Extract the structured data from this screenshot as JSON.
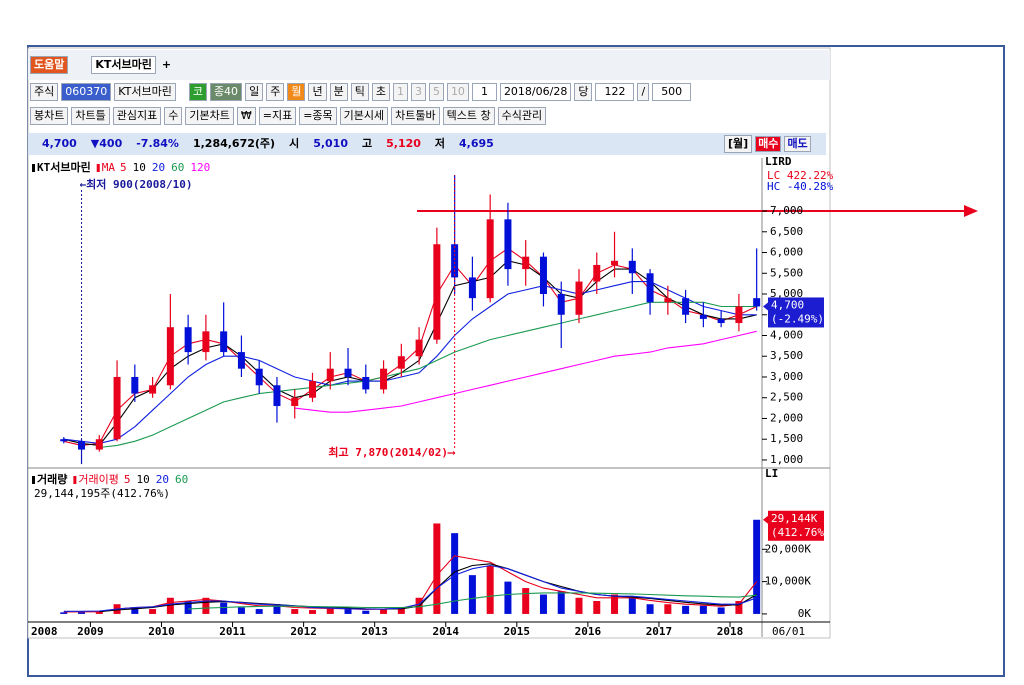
{
  "tabs": [
    "도움말",
    "KT서브마린",
    "+"
  ],
  "toolbar": [
    "주식",
    "060370",
    "KT서브마린",
    "코",
    "종40",
    "일",
    "주",
    "월",
    "년",
    "분",
    "틱",
    "초",
    "1",
    "3",
    "5",
    "10",
    "1",
    "2018/06/28",
    "당",
    "122",
    "/",
    "500"
  ],
  "toolbar2": [
    "봉차트",
    "차트틀",
    "관심지표",
    "수",
    "기본차트",
    "₩",
    "=지표",
    "=종목",
    "기본시세",
    "차트툴바",
    "텍스트 창",
    "수식관리"
  ],
  "quote": [
    "4,700",
    "▼400",
    "-7.84%",
    "1,284,672(주)",
    "시",
    "5,010",
    "고",
    "5,120",
    "저",
    "4,695"
  ],
  "quote_right": [
    "[월]",
    "매수",
    "매도"
  ],
  "chart_data": [
    {
      "type": "candlestick",
      "name": "KT서브마린",
      "ma_name": "MA",
      "corner": "LIRD",
      "lc": "LC 422.22%",
      "hc": "HC -40.28%",
      "last_label": "4,700",
      "last_change": "(-2.49%)",
      "up_color": "#e8001c",
      "down_color": "#0010d8",
      "x": [
        2008.625,
        2008.875,
        2009.125,
        2009.375,
        2009.625,
        2009.875,
        2010.125,
        2010.375,
        2010.625,
        2010.875,
        2011.125,
        2011.375,
        2011.625,
        2011.875,
        2012.125,
        2012.375,
        2012.625,
        2012.875,
        2013.125,
        2013.375,
        2013.625,
        2013.875,
        2014.125,
        2014.375,
        2014.625,
        2014.875,
        2015.125,
        2015.375,
        2015.625,
        2015.875,
        2016.125,
        2016.375,
        2016.625,
        2016.875,
        2017.125,
        2017.375,
        2017.625,
        2017.875,
        2018.125,
        2018.375
      ],
      "open": [
        1500,
        1450,
        1250,
        1500,
        3000,
        2600,
        2800,
        4200,
        3600,
        4100,
        3600,
        3200,
        2800,
        2300,
        2500,
        2900,
        3200,
        3000,
        2700,
        3200,
        3500,
        3900,
        6200,
        5400,
        4900,
        6800,
        5600,
        5900,
        5000,
        4500,
        5300,
        5700,
        5800,
        5500,
        4800,
        4900,
        4500,
        4400,
        4300,
        4900
      ],
      "high": [
        1550,
        1500,
        1600,
        3400,
        3300,
        3000,
        5000,
        4500,
        4500,
        4800,
        4000,
        3400,
        3000,
        2700,
        3100,
        3600,
        3700,
        3300,
        3400,
        3800,
        4200,
        6600,
        7870,
        5900,
        7400,
        7200,
        6300,
        6000,
        5300,
        5600,
        6000,
        6500,
        6100,
        5600,
        5200,
        5100,
        4800,
        4600,
        5000,
        6100
      ],
      "low": [
        1400,
        900,
        1200,
        1450,
        2400,
        2500,
        2700,
        3300,
        3400,
        3500,
        3000,
        2600,
        1900,
        2000,
        2400,
        2700,
        2800,
        2600,
        2600,
        3000,
        3300,
        3800,
        5000,
        4600,
        4800,
        5200,
        5200,
        4700,
        3700,
        4300,
        5000,
        5400,
        5000,
        4500,
        4500,
        4300,
        4200,
        4200,
        4100,
        4600
      ],
      "close": [
        1450,
        1250,
        1500,
        3000,
        2600,
        2800,
        4200,
        3600,
        4100,
        3600,
        3200,
        2800,
        2300,
        2500,
        2900,
        3200,
        3000,
        2700,
        3200,
        3500,
        3900,
        6200,
        5400,
        4900,
        6800,
        5600,
        5900,
        5000,
        4500,
        5300,
        5700,
        5800,
        5500,
        4800,
        4900,
        4500,
        4400,
        4300,
        4700,
        4700
      ],
      "series": [
        {
          "name": "5",
          "color": "#e8001c",
          "values": [
            1450,
            1350,
            1400,
            2200,
            2600,
            2700,
            3500,
            3800,
            3900,
            3800,
            3400,
            3000,
            2600,
            2400,
            2700,
            3000,
            3100,
            2900,
            3000,
            3300,
            3700,
            5000,
            5700,
            5200,
            5800,
            6100,
            5800,
            5400,
            4800,
            4900,
            5500,
            5700,
            5600,
            5100,
            4900,
            4600,
            4500,
            4350,
            4500,
            4700
          ]
        },
        {
          "name": "10",
          "color": "#000000",
          "values": [
            1500,
            1400,
            1350,
            1900,
            2500,
            2700,
            3200,
            3500,
            3700,
            3800,
            3500,
            3100,
            2700,
            2500,
            2600,
            2900,
            3000,
            2900,
            2900,
            3100,
            3400,
            4300,
            5200,
            5300,
            5400,
            5800,
            5700,
            5400,
            5000,
            4900,
            5300,
            5600,
            5600,
            5300,
            4900,
            4700,
            4500,
            4400,
            4400,
            4500
          ]
        },
        {
          "name": "20",
          "color": "#1020e0",
          "values": [
            1500,
            1450,
            1400,
            1500,
            1800,
            2200,
            2600,
            3000,
            3300,
            3500,
            3500,
            3400,
            3200,
            3000,
            2900,
            2800,
            2900,
            2900,
            2900,
            3000,
            3100,
            3500,
            4000,
            4400,
            4700,
            5000,
            5100,
            5200,
            5100,
            5000,
            5100,
            5200,
            5300,
            5300,
            5100,
            4900,
            4700,
            4600,
            4500,
            4500
          ]
        },
        {
          "name": "60",
          "color": "#1a9a50",
          "values": [
            null,
            null,
            1300,
            1350,
            1450,
            1600,
            1800,
            2000,
            2200,
            2400,
            2500,
            2600,
            2650,
            2700,
            2750,
            2800,
            2850,
            2900,
            3000,
            3100,
            3200,
            3400,
            3600,
            3750,
            3900,
            4000,
            4100,
            4200,
            4300,
            4400,
            4500,
            4600,
            4700,
            4800,
            4800,
            4800,
            4800,
            4700,
            4700,
            4700
          ]
        },
        {
          "name": "120",
          "color": "#ff00ff",
          "values": [
            null,
            null,
            null,
            null,
            null,
            null,
            null,
            null,
            null,
            null,
            null,
            null,
            null,
            2250,
            2200,
            2150,
            2150,
            2200,
            2250,
            2300,
            2400,
            2500,
            2600,
            2700,
            2800,
            2900,
            3000,
            3100,
            3200,
            3300,
            3400,
            3500,
            3550,
            3600,
            3700,
            3750,
            3800,
            3900,
            4000,
            4100
          ]
        }
      ],
      "annotations": [
        {
          "text": "←최저 900(2008/10)",
          "x": 2008.875,
          "y": 900,
          "color": "#1a1a9a"
        },
        {
          "text": "최고 7,870(2014/02)⟶",
          "x": 2014.125,
          "y": 7870,
          "color": "#e8001c"
        }
      ],
      "xlim": [
        2008.15,
        2018.45
      ],
      "ylim": [
        830,
        8110
      ],
      "yticks": [
        {
          "value": 1000,
          "label": "1,000"
        },
        {
          "value": 1500,
          "label": "1,500"
        },
        {
          "value": 2000,
          "label": "2,000"
        },
        {
          "value": 2500,
          "label": "2,500"
        },
        {
          "value": 3000,
          "label": "3,000"
        },
        {
          "value": 3500,
          "label": "3,500"
        },
        {
          "value": 4000,
          "label": "4,000"
        },
        {
          "value": 4500,
          "label": "4,500"
        },
        {
          "value": 5000,
          "label": "5,000"
        },
        {
          "value": 5500,
          "label": "5,500"
        },
        {
          "value": 6000,
          "label": "6,000"
        },
        {
          "value": 6500,
          "label": "6,500"
        },
        {
          "value": 7000,
          "label": "7,000"
        }
      ]
    },
    {
      "type": "bar",
      "name": "거래량",
      "ma_name": "거래이평",
      "corner": "LI",
      "total": "29,144,195주(412.76%)",
      "last_label": "29,144K",
      "last_change": "(412.76%)",
      "start_label": "2008",
      "end_label": "06/01",
      "x": [
        2008.625,
        2008.875,
        2009.125,
        2009.375,
        2009.625,
        2009.875,
        2010.125,
        2010.375,
        2010.625,
        2010.875,
        2011.125,
        2011.375,
        2011.625,
        2011.875,
        2012.125,
        2012.375,
        2012.625,
        2012.875,
        2013.125,
        2013.375,
        2013.625,
        2013.875,
        2014.125,
        2014.375,
        2014.625,
        2014.875,
        2015.125,
        2015.375,
        2015.625,
        2015.875,
        2016.125,
        2016.375,
        2016.625,
        2016.875,
        2017.125,
        2017.375,
        2017.625,
        2017.875,
        2018.125,
        2018.375
      ],
      "values": [
        500,
        800,
        600,
        3000,
        2000,
        1500,
        5000,
        4000,
        5000,
        3500,
        2000,
        1500,
        3000,
        1500,
        1200,
        2000,
        1500,
        1000,
        1500,
        2000,
        5000,
        28000,
        25000,
        12000,
        15000,
        10000,
        8000,
        6000,
        7000,
        5000,
        4000,
        6000,
        5000,
        3000,
        3000,
        2500,
        2500,
        2000,
        4000,
        29144
      ],
      "series": [
        {
          "name": "5",
          "color": "#e8001c",
          "values": [
            600,
            650,
            650,
            1500,
            2000,
            2200,
            3500,
            4000,
            4500,
            4000,
            3200,
            2500,
            2500,
            2000,
            1800,
            1700,
            1600,
            1400,
            1500,
            1700,
            3000,
            12000,
            18000,
            17000,
            16000,
            13000,
            10000,
            8000,
            7000,
            6000,
            5000,
            5000,
            5000,
            4200,
            3500,
            3000,
            2700,
            2400,
            3000,
            10000
          ]
        },
        {
          "name": "10",
          "color": "#000000",
          "values": [
            null,
            null,
            700,
            1200,
            1600,
            2000,
            2800,
            3200,
            3600,
            3800,
            3600,
            3200,
            2900,
            2500,
            2200,
            2000,
            1800,
            1600,
            1500,
            1600,
            2400,
            8000,
            13000,
            15000,
            15500,
            14000,
            12000,
            10000,
            8500,
            7000,
            6000,
            5500,
            5200,
            4800,
            4200,
            3600,
            3100,
            2800,
            2800,
            6000
          ]
        },
        {
          "name": "20",
          "color": "#1020e0",
          "values": [
            800,
            800,
            900,
            1500,
            2000,
            2200,
            3000,
            3500,
            4000,
            4000,
            3500,
            3000,
            2800,
            2500,
            2000,
            1800,
            1600,
            1500,
            1500,
            1800,
            3000,
            8000,
            12000,
            14000,
            15000,
            14000,
            12000,
            10000,
            8000,
            7000,
            6000,
            5500,
            5500,
            5000,
            4500,
            4000,
            3500,
            3000,
            3000,
            5000
          ]
        },
        {
          "name": "60",
          "color": "#1a9a50",
          "values": [
            null,
            null,
            null,
            null,
            null,
            null,
            null,
            1500,
            1800,
            2000,
            2200,
            2300,
            2400,
            2400,
            2300,
            2200,
            2100,
            2000,
            2000,
            2000,
            2200,
            3000,
            4000,
            4800,
            5500,
            6000,
            6300,
            6500,
            6500,
            6500,
            6400,
            6300,
            6200,
            6000,
            5800,
            5600,
            5500,
            5300,
            5200,
            5800
          ]
        }
      ],
      "xlim": [
        2008.15,
        2018.45
      ],
      "xticks": [
        2009,
        2010,
        2011,
        2012,
        2013,
        2014,
        2015,
        2016,
        2017,
        2018
      ],
      "ylim": [
        -2500,
        43000
      ],
      "yticks": [
        {
          "value": 0,
          "label": "0K"
        },
        {
          "value": 10000,
          "label": "10,000K"
        },
        {
          "value": 20000,
          "label": "20,000K"
        }
      ]
    }
  ]
}
